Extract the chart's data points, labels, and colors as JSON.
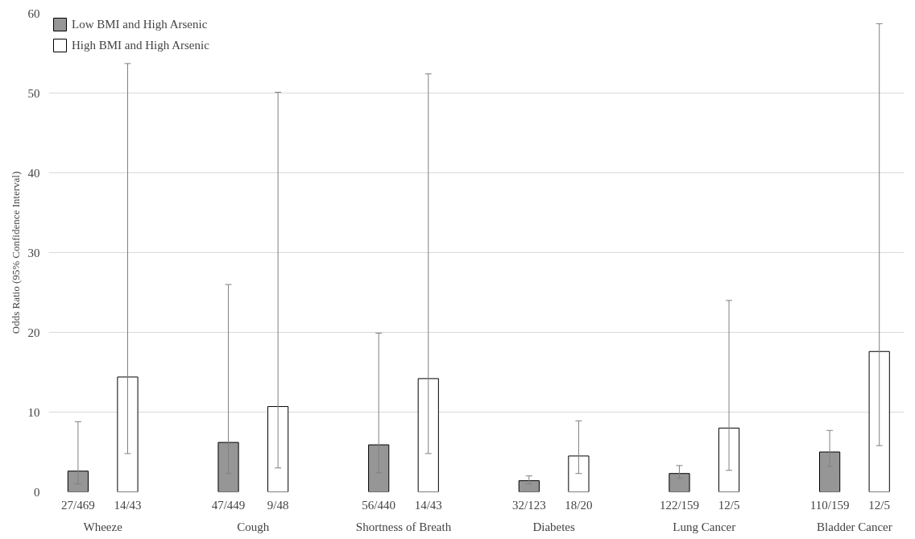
{
  "chart_data": {
    "type": "bar",
    "ylabel": "Odds Ratio (95% Confidence Interval)",
    "categories": [
      "Wheeze",
      "Cough",
      "Shortness of Breath",
      "Diabetes",
      "Lung Cancer",
      "Bladder Cancer"
    ],
    "series": [
      {
        "name": "Low BMI and High Arsenic",
        "color": "#969696",
        "values": [
          2.6,
          6.2,
          5.9,
          1.4,
          2.3,
          5.0
        ],
        "errors": [
          [
            1.0,
            8.8
          ],
          [
            2.3,
            26.0
          ],
          [
            2.4,
            19.9
          ],
          [
            1.0,
            2.0
          ],
          [
            1.7,
            3.3
          ],
          [
            3.2,
            7.7
          ]
        ]
      },
      {
        "name": "High BMI and High Arsenic",
        "color": "#ffffff",
        "values": [
          14.4,
          10.7,
          14.2,
          4.5,
          8.0,
          17.6
        ],
        "errors": [
          [
            4.8,
            53.7
          ],
          [
            3.0,
            50.1
          ],
          [
            4.8,
            52.4
          ],
          [
            2.3,
            8.9
          ],
          [
            2.7,
            24.0
          ],
          [
            5.8,
            58.7
          ]
        ]
      }
    ],
    "annotations": [
      "27/469",
      "47/449",
      "56/440",
      "32/123",
      "122/159",
      "110/159",
      "14/43",
      "9/48",
      "14/43",
      "18/20",
      "12/5",
      "12/5"
    ],
    "ylim": [
      0,
      60
    ],
    "yticks": [
      0,
      10,
      20,
      30,
      40,
      50,
      60
    ],
    "grid": "y",
    "legend": "top left"
  }
}
